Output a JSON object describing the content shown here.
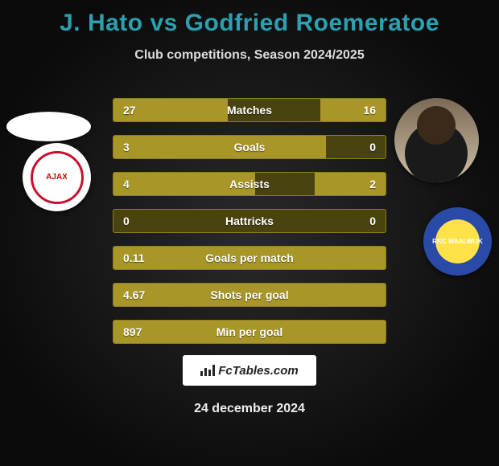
{
  "title": "J. Hato vs Godfried Roemeratoe",
  "subtitle": "Club competitions, Season 2024/2025",
  "date": "24 december 2024",
  "footer_brand": "FcTables.com",
  "player1": {
    "name": "J. Hato",
    "club": "AJAX",
    "club_color": "#c8102e"
  },
  "player2": {
    "name": "Godfried Roemeratoe",
    "club": "RKC WAALWIJK",
    "club_colors": [
      "#ffe24a",
      "#2a4aa8"
    ]
  },
  "colors": {
    "title": "#2aa0b0",
    "bar_fill": "#a89628",
    "bar_bg": "#494310",
    "bar_border": "#8b7f20",
    "text": "#ffffff"
  },
  "rows": [
    {
      "label": "Matches",
      "left": "27",
      "right": "16",
      "leftPct": 42,
      "rightPct": 24
    },
    {
      "label": "Goals",
      "left": "3",
      "right": "0",
      "leftPct": 78,
      "rightPct": 0
    },
    {
      "label": "Assists",
      "left": "4",
      "right": "2",
      "leftPct": 52,
      "rightPct": 26
    },
    {
      "label": "Hattricks",
      "left": "0",
      "right": "0",
      "leftPct": 0,
      "rightPct": 0
    },
    {
      "label": "Goals per match",
      "left": "0.11",
      "right": "",
      "leftPct": 100,
      "rightPct": 0
    },
    {
      "label": "Shots per goal",
      "left": "4.67",
      "right": "",
      "leftPct": 100,
      "rightPct": 0
    },
    {
      "label": "Min per goal",
      "left": "897",
      "right": "",
      "leftPct": 100,
      "rightPct": 0
    }
  ]
}
